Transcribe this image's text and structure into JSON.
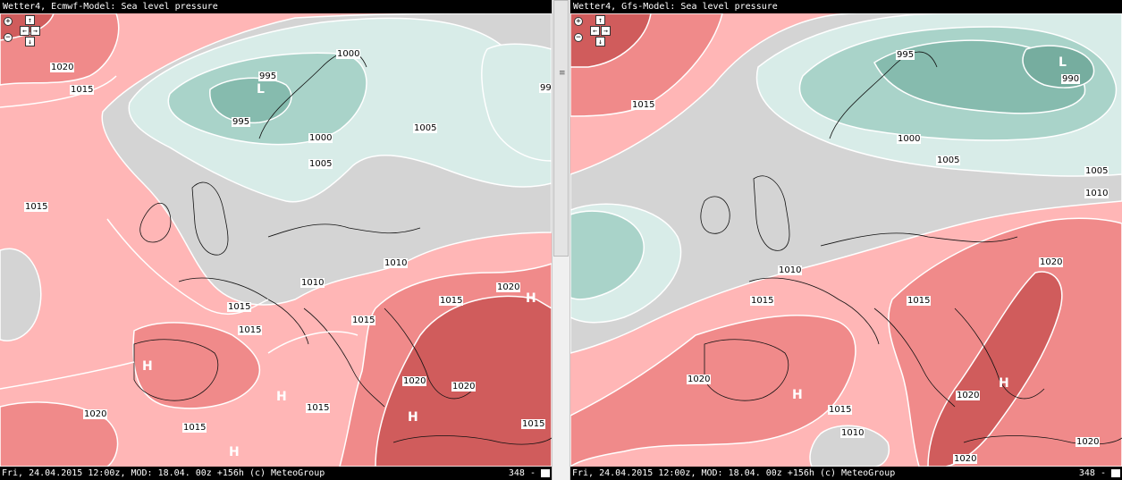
{
  "panels": [
    {
      "title": "Wetter4, Ecmwf-Model: Sea level pressure",
      "footer": "Fri, 24.04.2015 12:00z, MOD: 18.04. 00z +156h (c) MeteoGroup",
      "page": "348 -",
      "isobar_labels": [
        "1020",
        "1015",
        "995",
        "995",
        "1000",
        "1000",
        "1005",
        "1005",
        "1015",
        "1010",
        "1010",
        "1015",
        "1015",
        "1015",
        "1020",
        "1015",
        "1020",
        "1020",
        "1020",
        "1015",
        "1015",
        "1015",
        "99"
      ],
      "pressure_centers": [
        "L",
        "H",
        "H",
        "H",
        "H",
        "H"
      ]
    },
    {
      "title": "Wetter4, Gfs-Model: Sea level pressure",
      "footer": "Fri, 24.04.2015 12:00z, MOD: 18.04. 00z +156h (c) MeteoGroup",
      "page": "348 -",
      "isobar_labels": [
        "1015",
        "995",
        "990",
        "1000",
        "1005",
        "1005",
        "1010",
        "1010",
        "1015",
        "1020",
        "1020",
        "1020",
        "1015",
        "1010",
        "1020",
        "1015",
        "1020"
      ],
      "pressure_centers": [
        "L",
        "H",
        "H"
      ]
    }
  ],
  "controls": {
    "zoom_in": "+",
    "zoom_out": "−",
    "pan_up": "↑",
    "pan_down": "↓",
    "pan_left": "←",
    "pan_right": "→",
    "pan_center": "✥"
  },
  "divider": {
    "grip_label": "≡"
  },
  "colors": {
    "high_1015": "#ffb6b6",
    "high_1020": "#f08a8a",
    "high_1025": "#d05c5c",
    "high_1030": "#b43c3c",
    "neutral": "#d4d4d4",
    "low_1005": "#d8ece8",
    "low_1000": "#a9d3c9",
    "low_995": "#86bbae",
    "titlebar": "#000000"
  }
}
